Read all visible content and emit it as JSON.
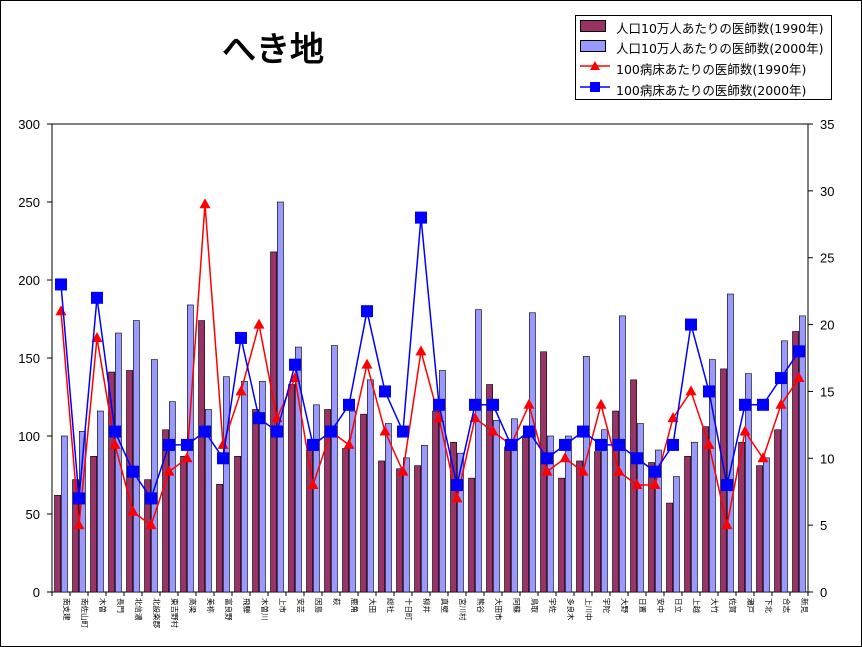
{
  "colors": {
    "bar1990": "#993366",
    "bar2000": "#9999FF",
    "line1990": "#FF0000",
    "line2000": "#0000FF",
    "marker2000": "#0000FF"
  },
  "chart_data": {
    "type": "bar",
    "title": "へき地",
    "categories": [
      "南支建",
      "南佐山町",
      "木曽",
      "長門",
      "北信濃",
      "北設楽郡",
      "東吉野村",
      "高梁",
      "美祢",
      "富良野",
      "飛騨",
      "木曽川",
      "上市",
      "安芸",
      "因島",
      "萩",
      "鹿角",
      "大田",
      "総社",
      "十日町",
      "柳井",
      "真壁",
      "宮川村",
      "熊谷",
      "大田市",
      "阿蘇",
      "鳥取",
      "宇佐",
      "多良木",
      "上川中",
      "宇陀",
      "大野",
      "日置",
      "安中",
      "日立",
      "上越",
      "大竹",
      "佐賀",
      "瀬戸",
      "下北",
      "合志",
      "新見"
    ],
    "ylim": [
      0,
      300
    ],
    "y2lim": [
      0,
      35
    ],
    "yticks": [
      0,
      50,
      100,
      150,
      200,
      250,
      300
    ],
    "y2ticks": [
      0,
      5,
      10,
      15,
      20,
      25,
      30,
      35
    ],
    "series": [
      {
        "name": "人口10万人あたりの医師数(1990年)",
        "kind": "bar",
        "axis": "left",
        "values": [
          62,
          72,
          87,
          141,
          142,
          72,
          104,
          87,
          174,
          69,
          87,
          117,
          218,
          133,
          91,
          117,
          92,
          114,
          84,
          79,
          81,
          116,
          96,
          73,
          133,
          93,
          99,
          154,
          73,
          84,
          90,
          116,
          136,
          83,
          57,
          87,
          106,
          143,
          96,
          81,
          104,
          167
        ]
      },
      {
        "name": "人口10万人あたりの医師数(2000年)",
        "kind": "bar",
        "axis": "left",
        "values": [
          100,
          103,
          116,
          166,
          174,
          149,
          122,
          184,
          117,
          138,
          135,
          135,
          250,
          157,
          120,
          158,
          116,
          136,
          108,
          86,
          94,
          142,
          89,
          181,
          110,
          111,
          179,
          100,
          100,
          151,
          104,
          177,
          108,
          91,
          74,
          96,
          149,
          191,
          140,
          86,
          161,
          177
        ]
      },
      {
        "name": "100病床あたりの医師数(1990年)",
        "kind": "line",
        "axis": "right",
        "marker": "triangle",
        "values": [
          21,
          5,
          19,
          11,
          6,
          5,
          9,
          10,
          29,
          11,
          15,
          20,
          13,
          16,
          8,
          12,
          11,
          17,
          12,
          9,
          18,
          13,
          7,
          13,
          12,
          11,
          14,
          9,
          10,
          9,
          14,
          9,
          8,
          8,
          13,
          15,
          11,
          5,
          12,
          10,
          14,
          16
        ]
      },
      {
        "name": "100病床あたりの医師数(2000年)",
        "kind": "line",
        "axis": "right",
        "marker": "square",
        "values": [
          23,
          7,
          22,
          12,
          9,
          7,
          11,
          11,
          12,
          10,
          19,
          13,
          12,
          17,
          11,
          12,
          14,
          21,
          15,
          12,
          28,
          14,
          8,
          14,
          14,
          11,
          12,
          10,
          11,
          12,
          11,
          11,
          10,
          9,
          11,
          20,
          15,
          8,
          14,
          14,
          16,
          18
        ]
      }
    ]
  }
}
